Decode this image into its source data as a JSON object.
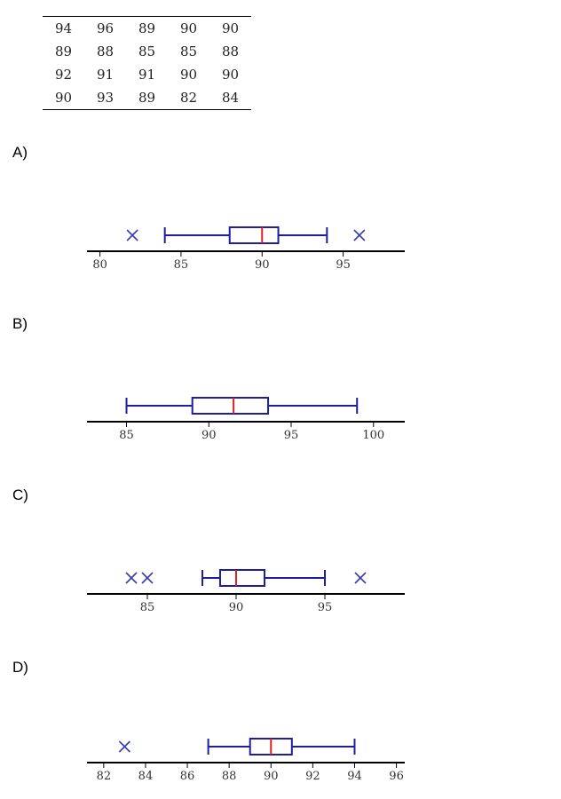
{
  "table": {
    "rows": [
      [
        "94",
        "96",
        "89",
        "90",
        "90"
      ],
      [
        "89",
        "88",
        "85",
        "85",
        "88"
      ],
      [
        "92",
        "91",
        "91",
        "90",
        "90"
      ],
      [
        "90",
        "93",
        "89",
        "82",
        "84"
      ]
    ]
  },
  "options": [
    {
      "label": "A)"
    },
    {
      "label": "B)"
    },
    {
      "label": "C)"
    },
    {
      "label": "D)"
    }
  ],
  "colors": {
    "box": "#1f1f9e",
    "median": "#dd2222",
    "outlier": "#3b3baf",
    "axis": "#000000"
  },
  "chart_data": [
    {
      "type": "boxplot",
      "option": "A)",
      "xlim": [
        79.2,
        98.8
      ],
      "ticks": [
        80,
        85,
        90,
        95
      ],
      "whisker_low": 84,
      "q1": 88,
      "median": 90,
      "q3": 91,
      "whisker_high": 94,
      "outliers": [
        82,
        96
      ]
    },
    {
      "type": "boxplot",
      "option": "B)",
      "xlim": [
        82.6,
        101.9
      ],
      "ticks": [
        85,
        90,
        95,
        100
      ],
      "whisker_low": 85,
      "q1": 89,
      "median": 91.5,
      "q3": 93.6,
      "whisker_high": 99,
      "outliers": []
    },
    {
      "type": "boxplot",
      "option": "C)",
      "xlim": [
        81.6,
        99.5
      ],
      "ticks": [
        85,
        90,
        95
      ],
      "whisker_low": 88.1,
      "q1": 89.1,
      "median": 90,
      "q3": 91.6,
      "whisker_high": 95,
      "outliers": [
        84.1,
        85,
        97
      ]
    },
    {
      "type": "boxplot",
      "option": "D)",
      "xlim": [
        81.2,
        96.4
      ],
      "ticks": [
        82,
        84,
        86,
        88,
        90,
        92,
        94,
        96
      ],
      "whisker_low": 87,
      "q1": 89,
      "median": 90,
      "q3": 91,
      "whisker_high": 94,
      "outliers": [
        83
      ]
    }
  ]
}
